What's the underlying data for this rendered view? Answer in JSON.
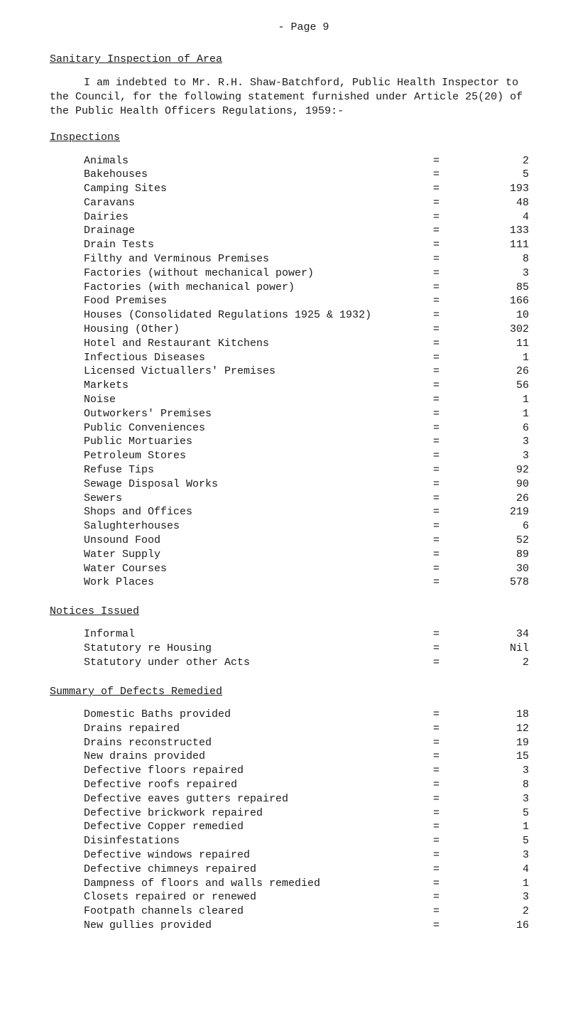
{
  "page_label": "- Page 9",
  "section1": {
    "heading": "Sanitary Inspection of Area",
    "paragraph": "I am indebted to Mr. R.H. Shaw-Batchford, Public Health Inspector to the Council, for the following statement furnished under Article 25(20) of the Public Health Officers Regulations, 1959:-"
  },
  "inspections": {
    "heading": "Inspections",
    "rows": [
      {
        "label": "Animals",
        "value": "2"
      },
      {
        "label": "Bakehouses",
        "value": "5"
      },
      {
        "label": "Camping Sites",
        "value": "193"
      },
      {
        "label": "Caravans",
        "value": "48"
      },
      {
        "label": "Dairies",
        "value": "4"
      },
      {
        "label": "Drainage",
        "value": "133"
      },
      {
        "label": "Drain Tests",
        "value": "111"
      },
      {
        "label": "Filthy and Verminous Premises",
        "value": "8"
      },
      {
        "label": "Factories (without mechanical power)",
        "value": "3"
      },
      {
        "label": "Factories (with mechanical power)",
        "value": "85"
      },
      {
        "label": "Food Premises",
        "value": "166"
      },
      {
        "label": "Houses (Consolidated Regulations 1925 & 1932)",
        "value": "10"
      },
      {
        "label": "Housing (Other)",
        "value": "302"
      },
      {
        "label": "Hotel and Restaurant Kitchens",
        "value": "11"
      },
      {
        "label": "Infectious Diseases",
        "value": "1"
      },
      {
        "label": "Licensed Victuallers' Premises",
        "value": "26"
      },
      {
        "label": "Markets",
        "value": "56"
      },
      {
        "label": "Noise",
        "value": "1"
      },
      {
        "label": "Outworkers' Premises",
        "value": "1"
      },
      {
        "label": "Public Conveniences",
        "value": "6"
      },
      {
        "label": "Public Mortuaries",
        "value": "3"
      },
      {
        "label": "Petroleum Stores",
        "value": "3"
      },
      {
        "label": "Refuse Tips",
        "value": "92"
      },
      {
        "label": "Sewage Disposal Works",
        "value": "90"
      },
      {
        "label": "Sewers",
        "value": "26"
      },
      {
        "label": "Shops and Offices",
        "value": "219"
      },
      {
        "label": "Salughterhouses",
        "value": "6"
      },
      {
        "label": "Unsound Food",
        "value": "52"
      },
      {
        "label": "Water Supply",
        "value": "89"
      },
      {
        "label": "Water Courses",
        "value": "30"
      },
      {
        "label": "Work Places",
        "value": "578"
      }
    ]
  },
  "notices": {
    "heading": "Notices Issued",
    "rows": [
      {
        "label": "Informal",
        "value": "34"
      },
      {
        "label": "Statutory re Housing",
        "value": "Nil"
      },
      {
        "label": "Statutory under other Acts",
        "value": "2"
      }
    ]
  },
  "summary": {
    "heading": "Summary of Defects Remedied",
    "rows": [
      {
        "label": "Domestic Baths provided",
        "value": "18"
      },
      {
        "label": "Drains repaired",
        "value": "12"
      },
      {
        "label": "Drains reconstructed",
        "value": "19"
      },
      {
        "label": "New drains provided",
        "value": "15"
      },
      {
        "label": "Defective floors repaired",
        "value": "3"
      },
      {
        "label": "Defective roofs repaired",
        "value": "8"
      },
      {
        "label": "Defective eaves gutters repaired",
        "value": "3"
      },
      {
        "label": "Defective brickwork repaired",
        "value": "5"
      },
      {
        "label": "Defective Copper remedied",
        "value": "1"
      },
      {
        "label": "Disinfestations",
        "value": "5"
      },
      {
        "label": "Defective windows repaired",
        "value": "3"
      },
      {
        "label": "Defective chimneys repaired",
        "value": "4"
      },
      {
        "label": "Dampness of floors and walls remedied",
        "value": "1"
      },
      {
        "label": "Closets repaired or renewed",
        "value": "3"
      },
      {
        "label": "Footpath channels cleared",
        "value": "2"
      },
      {
        "label": "New gullies provided",
        "value": "16"
      }
    ]
  }
}
